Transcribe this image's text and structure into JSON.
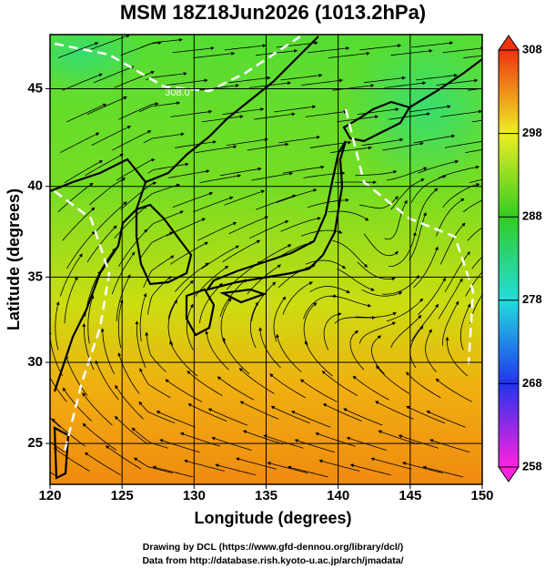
{
  "chart_data": {
    "type": "field-map",
    "title": "MSM 18Z18Jun2026 (1013.2hPa)",
    "x_label": "Longitude (degrees)",
    "y_label": "Latitude (degrees)",
    "xlim": [
      120,
      150
    ],
    "xticks": [
      120,
      125,
      130,
      135,
      140,
      145,
      150
    ],
    "ylim": [
      22.4,
      47.6
    ],
    "yticks": [
      25,
      30,
      35,
      40,
      45
    ],
    "y_scale": "mercator",
    "grid": true,
    "contour_label": "308.0",
    "colorbar": {
      "lim": [
        258,
        308
      ],
      "ticks": [
        258,
        268,
        278,
        288,
        298,
        308
      ],
      "colors": [
        "#ff22dd",
        "#2233ee",
        "#22dddd",
        "#33cc22",
        "#eeee22",
        "#ee3311"
      ]
    },
    "footer": [
      "Drawing by DCL (https://www.gfd-dennou.org/library/dcl/)",
      "Data from http://database.rish.kyoto-u.ac.jp/arch/jmadata/"
    ]
  }
}
